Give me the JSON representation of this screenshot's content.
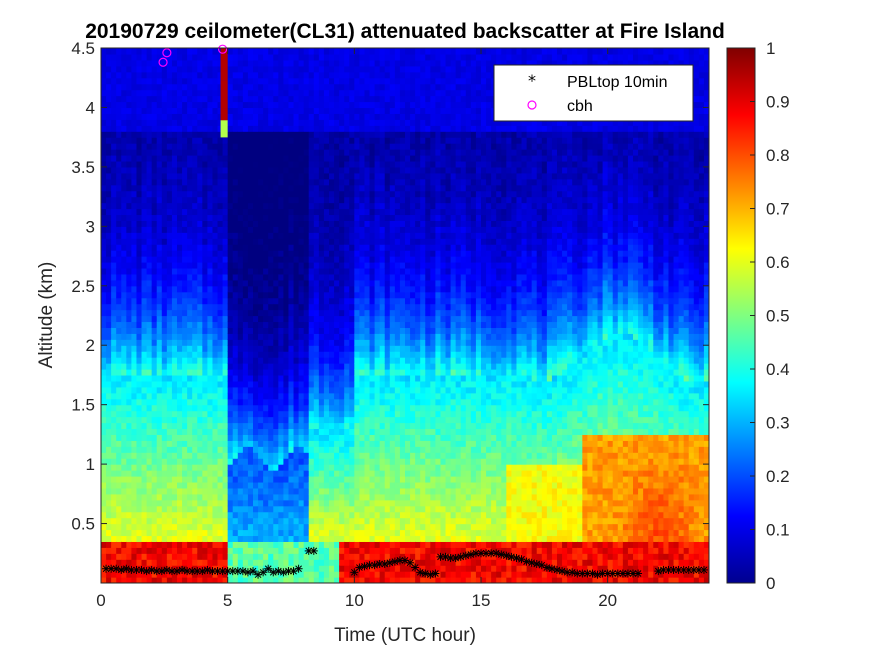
{
  "chart_data": {
    "type": "heatmap",
    "title": "20190729 ceilometer(CL31) attenuated backscatter at Fire Island",
    "xlabel": "Time (UTC hour)",
    "ylabel": "Altitude (km)",
    "xlim": [
      0,
      24
    ],
    "ylim": [
      0,
      4.5
    ],
    "xticks": [
      0,
      5,
      10,
      15,
      20
    ],
    "yticks": [
      0.5,
      1,
      1.5,
      2,
      2.5,
      3,
      3.5,
      4,
      4.5
    ],
    "colorbar": {
      "range": [
        0,
        1
      ],
      "ticks": [
        0,
        0.1,
        0.2,
        0.3,
        0.4,
        0.5,
        0.6,
        0.7,
        0.8,
        0.9,
        1
      ],
      "colormap": "jet"
    },
    "legend": {
      "placement": "top-right",
      "entries": [
        {
          "label": "PBLtop 10min",
          "marker": "asterisk",
          "color": "#000000"
        },
        {
          "label": "cbh",
          "marker": "circle",
          "color": "#ff00ff"
        }
      ]
    },
    "series": [
      {
        "name": "PBLtop 10min",
        "x": [
          0.2,
          0.4,
          0.6,
          0.8,
          1.0,
          1.2,
          1.4,
          1.6,
          1.8,
          2.0,
          2.2,
          2.4,
          2.6,
          2.8,
          3.0,
          3.2,
          3.4,
          3.6,
          3.8,
          4.0,
          4.2,
          4.4,
          4.6,
          4.8,
          5.0,
          5.2,
          5.4,
          5.6,
          5.8,
          6.0,
          6.2,
          6.4,
          6.6,
          6.8,
          7.0,
          7.2,
          7.4,
          7.6,
          7.8,
          8.2,
          8.4,
          10.0,
          10.2,
          10.4,
          10.6,
          10.8,
          11.0,
          11.2,
          11.4,
          11.6,
          11.8,
          12.0,
          12.2,
          12.4,
          12.6,
          12.8,
          13.0,
          13.2,
          13.4,
          13.6,
          13.8,
          14.0,
          14.2,
          14.4,
          14.6,
          14.8,
          15.0,
          15.2,
          15.4,
          15.6,
          15.8,
          16.0,
          16.2,
          16.4,
          16.6,
          16.8,
          17.0,
          17.2,
          17.4,
          17.6,
          17.8,
          18.0,
          18.2,
          18.4,
          18.6,
          18.8,
          19.0,
          19.2,
          19.4,
          19.6,
          19.8,
          20.0,
          20.2,
          20.4,
          20.6,
          20.8,
          21.0,
          21.2,
          22.0,
          22.2,
          22.4,
          22.6,
          22.8,
          23.0,
          23.2,
          23.4,
          23.6,
          23.8
        ],
        "y": [
          0.12,
          0.12,
          0.12,
          0.11,
          0.12,
          0.11,
          0.11,
          0.11,
          0.1,
          0.11,
          0.1,
          0.1,
          0.11,
          0.1,
          0.1,
          0.11,
          0.1,
          0.1,
          0.1,
          0.1,
          0.11,
          0.1,
          0.1,
          0.1,
          0.1,
          0.1,
          0.1,
          0.1,
          0.09,
          0.1,
          0.07,
          0.09,
          0.12,
          0.09,
          0.1,
          0.09,
          0.1,
          0.1,
          0.12,
          0.27,
          0.27,
          0.09,
          0.13,
          0.14,
          0.15,
          0.15,
          0.16,
          0.16,
          0.17,
          0.18,
          0.19,
          0.19,
          0.17,
          0.13,
          0.09,
          0.08,
          0.07,
          0.08,
          0.22,
          0.22,
          0.21,
          0.21,
          0.22,
          0.23,
          0.24,
          0.25,
          0.25,
          0.25,
          0.25,
          0.25,
          0.24,
          0.23,
          0.22,
          0.21,
          0.2,
          0.18,
          0.17,
          0.16,
          0.15,
          0.13,
          0.12,
          0.11,
          0.1,
          0.09,
          0.09,
          0.08,
          0.08,
          0.08,
          0.08,
          0.07,
          0.08,
          0.08,
          0.08,
          0.08,
          0.08,
          0.08,
          0.08,
          0.08,
          0.1,
          0.11,
          0.11,
          0.11,
          0.11,
          0.11,
          0.11,
          0.11,
          0.11,
          0.11
        ]
      },
      {
        "name": "cbh",
        "x": [
          2.45,
          2.6,
          4.8
        ],
        "y": [
          4.38,
          4.46,
          4.49
        ]
      }
    ],
    "field_description": "Attenuated backscatter: high values (0.6-1) below ~0.35 km all day, broad 0.3-0.6 layer up to ~1.8 km, strong enhancement (0.7-0.85) around 20-24 h below 1.2 km, dry/clean column (0.1-0.3) between 5-8 h, thin high cloud near 4-4.5 km at ~4.8 h and ~2.5 h."
  }
}
